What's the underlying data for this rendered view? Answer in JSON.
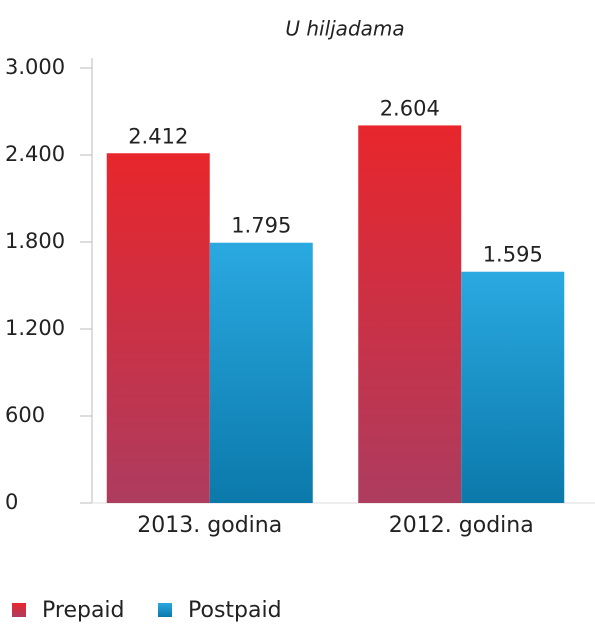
{
  "chart_data": {
    "type": "bar",
    "subtitle": "U hiljadama",
    "categories": [
      "2013. godina",
      "2012. godina"
    ],
    "series": [
      {
        "name": "Prepaid",
        "color": [
          "#e8262c",
          "#ad3c5f"
        ],
        "values": [
          2412,
          2604
        ],
        "value_labels": [
          "2.412",
          "2.604"
        ]
      },
      {
        "name": "Postpaid",
        "color": [
          "#2aa9e1",
          "#0b79aa"
        ],
        "values": [
          1795,
          1595
        ],
        "value_labels": [
          "1.795",
          "1.595"
        ]
      }
    ],
    "ylim": [
      0,
      3000
    ],
    "yticks": [
      0,
      600,
      {
        "value": 1200,
        "label": "1.200"
      },
      {
        "value": 1800,
        "label": "1.800"
      },
      {
        "value": 2400,
        "label": "2.400"
      },
      {
        "value": 3000,
        "label": "3.000"
      }
    ],
    "legend": "bottom"
  }
}
